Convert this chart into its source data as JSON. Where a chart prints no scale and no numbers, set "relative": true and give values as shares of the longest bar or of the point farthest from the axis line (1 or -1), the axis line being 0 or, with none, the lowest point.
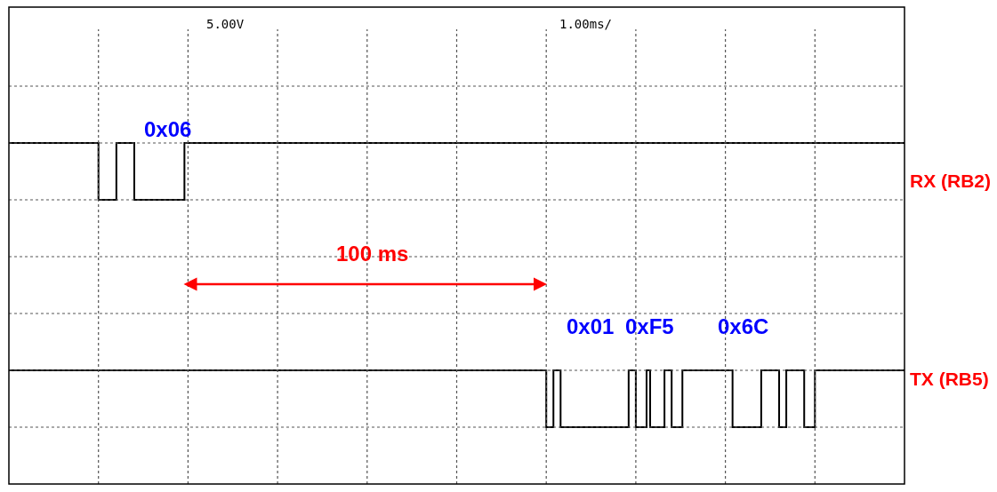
{
  "chart_data": {
    "type": "step",
    "relative": true,
    "grid": true,
    "legend": false,
    "marker": "none",
    "line_style": "solid",
    "annotations": [
      "5.00V",
      "1.00ms/",
      "0x06",
      "100 ms",
      "0x01",
      "0xF5",
      "0x6C"
    ],
    "categories": [
      null,
      null,
      null,
      null,
      null,
      null,
      null,
      null,
      null,
      null,
      null,
      null,
      null,
      null,
      null,
      null,
      null,
      null,
      null,
      null,
      null,
      null,
      null,
      null,
      null,
      null,
      null,
      null,
      null,
      null,
      null,
      null,
      null,
      null,
      null,
      null,
      null,
      null,
      null,
      null,
      null,
      null,
      null,
      null,
      null,
      null,
      null,
      null,
      null,
      null,
      null,
      null,
      null,
      null,
      null,
      null,
      null,
      null,
      null,
      null,
      null,
      null,
      null,
      null,
      null,
      null,
      null,
      null,
      null,
      null,
      null,
      null,
      null,
      null,
      null,
      null,
      null,
      null,
      null,
      null,
      null,
      null,
      null,
      null,
      null,
      null,
      null,
      null,
      null,
      null,
      null,
      null,
      null,
      null,
      null,
      null,
      null,
      null,
      null,
      null,
      null,
      null,
      null,
      null,
      null,
      null,
      null,
      null,
      null,
      null,
      null,
      null,
      null,
      null,
      null,
      null,
      null,
      null,
      null,
      null,
      null,
      null,
      null,
      null,
      null,
      null,
      null,
      null,
      null,
      null,
      null,
      null,
      null,
      null,
      null,
      null,
      null,
      null,
      null,
      null,
      null,
      null,
      null,
      null,
      null,
      null,
      null,
      null,
      null,
      null,
      null,
      null,
      null,
      null,
      null,
      null,
      null,
      null,
      null,
      null,
      null,
      null,
      null,
      null,
      null,
      null,
      null,
      null,
      null,
      null,
      null,
      null,
      null,
      null,
      null,
      null,
      null,
      null,
      null,
      null,
      null,
      null,
      null,
      null,
      null,
      null,
      null,
      null,
      null,
      null,
      null,
      null,
      null,
      null,
      null,
      null,
      null,
      null,
      null,
      null,
      null,
      null,
      null,
      null,
      null,
      null,
      null,
      null,
      null,
      null,
      null,
      null,
      null,
      null,
      null,
      null,
      null,
      null,
      null,
      null,
      null,
      null,
      null,
      null,
      null,
      null,
      null,
      null,
      null,
      null,
      null,
      null,
      null,
      null,
      null,
      null,
      null,
      null,
      null,
      null,
      null,
      null,
      null,
      null,
      null,
      null,
      null,
      null,
      null,
      null,
      null
    ],
    "series": [
      {
        "name": "RX (RB2)",
        "color": "#000000",
        "values": [
          1,
          1,
          1,
          1,
          1,
          1,
          1,
          1,
          1,
          1,
          1,
          1,
          1,
          1,
          1,
          1,
          1,
          1,
          1,
          1,
          1,
          1,
          1,
          1,
          1,
          0.8,
          0.8,
          0.8,
          0.8,
          0.8,
          1,
          1,
          1,
          1,
          1,
          0.8,
          0.8,
          0.8,
          0.8,
          0.8,
          0.8,
          0.8,
          0.8,
          0.8,
          0.8,
          0.8,
          0.8,
          0.8,
          0.8,
          1,
          1,
          1,
          1,
          1,
          1,
          1,
          1,
          1,
          1,
          1,
          1,
          1,
          1,
          1,
          1,
          1,
          1,
          1,
          1,
          1,
          1,
          1,
          1,
          1,
          1,
          1,
          1,
          1,
          1,
          1,
          1,
          1,
          1,
          1,
          1,
          1,
          1,
          1,
          1,
          1,
          1,
          1,
          1,
          1,
          1,
          1,
          1,
          1,
          1,
          1,
          1,
          1,
          1,
          1,
          1,
          1,
          1,
          1,
          1,
          1,
          1,
          1,
          1,
          1,
          1,
          1,
          1,
          1,
          1,
          1,
          1,
          1,
          1,
          1,
          1,
          1,
          1,
          1,
          1,
          1,
          1,
          1,
          1,
          1,
          1,
          1,
          1,
          1,
          1,
          1,
          1,
          1,
          1,
          1,
          1,
          1,
          1,
          1,
          1,
          1,
          1,
          1,
          1,
          1,
          1,
          1,
          1,
          1,
          1,
          1,
          1,
          1,
          1,
          1,
          1,
          1,
          1,
          1,
          1,
          1,
          1,
          1,
          1,
          1,
          1,
          1,
          1,
          1,
          1,
          1,
          1,
          1,
          1,
          1,
          1,
          1,
          1,
          1,
          1,
          1,
          1,
          1,
          1,
          1,
          1,
          1,
          1,
          1,
          1,
          1,
          1,
          1,
          1,
          1,
          1,
          1,
          1,
          1,
          1,
          1,
          1,
          1,
          1,
          1,
          1,
          1,
          1,
          1,
          1,
          1,
          1,
          1,
          1,
          1,
          1,
          1,
          1,
          1,
          1,
          1,
          1,
          1,
          1,
          1,
          1,
          1,
          1,
          1,
          1,
          1,
          1,
          1,
          1,
          1,
          1,
          1,
          1,
          1,
          1,
          1,
          1
        ]
      },
      {
        "name": "TX (RB5)",
        "color": "#000000",
        "values": [
          0.2,
          0.2,
          0.2,
          0.2,
          0.2,
          0.2,
          0.2,
          0.2,
          0.2,
          0.2,
          0.2,
          0.2,
          0.2,
          0.2,
          0.2,
          0.2,
          0.2,
          0.2,
          0.2,
          0.2,
          0.2,
          0.2,
          0.2,
          0.2,
          0.2,
          0.2,
          0.2,
          0.2,
          0.2,
          0.2,
          0.2,
          0.2,
          0.2,
          0.2,
          0.2,
          0.2,
          0.2,
          0.2,
          0.2,
          0.2,
          0.2,
          0.2,
          0.2,
          0.2,
          0.2,
          0.2,
          0.2,
          0.2,
          0.2,
          0.2,
          0.2,
          0.2,
          0.2,
          0.2,
          0.2,
          0.2,
          0.2,
          0.2,
          0.2,
          0.2,
          0.2,
          0.2,
          0.2,
          0.2,
          0.2,
          0.2,
          0.2,
          0.2,
          0.2,
          0.2,
          0.2,
          0.2,
          0.2,
          0.2,
          0.2,
          0.2,
          0.2,
          0.2,
          0.2,
          0.2,
          0.2,
          0.2,
          0.2,
          0.2,
          0.2,
          0.2,
          0.2,
          0.2,
          0.2,
          0.2,
          0.2,
          0.2,
          0.2,
          0.2,
          0.2,
          0.2,
          0.2,
          0.2,
          0.2,
          0.2,
          0.2,
          0.2,
          0.2,
          0.2,
          0.2,
          0.2,
          0.2,
          0.2,
          0.2,
          0.2,
          0.2,
          0.2,
          0.2,
          0.2,
          0.2,
          0.2,
          0.2,
          0.2,
          0.2,
          0.2,
          0.2,
          0.2,
          0.2,
          0.2,
          0.2,
          0.2,
          0.2,
          0.2,
          0.2,
          0.2,
          0.2,
          0.2,
          0.2,
          0.2,
          0.2,
          0.2,
          0.2,
          0.2,
          0.2,
          0.2,
          0.2,
          0.2,
          0.2,
          0.2,
          0.2,
          0.2,
          0.2,
          0.2,
          0.2,
          0.2,
          0,
          0,
          0.2,
          0.2,
          0,
          0,
          0,
          0,
          0,
          0,
          0,
          0,
          0,
          0,
          0,
          0,
          0,
          0,
          0,
          0,
          0,
          0,
          0,
          0.2,
          0.2,
          0,
          0,
          0,
          0.2,
          0,
          0,
          0,
          0,
          0.2,
          0.2,
          0,
          0,
          0,
          0.2,
          0.2,
          0.2,
          0.2,
          0.2,
          0.2,
          0.2,
          0.2,
          0.2,
          0.2,
          0.2,
          0.2,
          0.2,
          0.2,
          0,
          0,
          0,
          0,
          0,
          0,
          0,
          0,
          0.2,
          0.2,
          0.2,
          0.2,
          0.2,
          0,
          0,
          0.2,
          0.2,
          0.2,
          0.2,
          0.2,
          0,
          0,
          0,
          0.2,
          0.2,
          0.2,
          0.2,
          0.2,
          0.2,
          0.2,
          0.2,
          0.2,
          0.2,
          0.2,
          0.2,
          0.2,
          0.2,
          0.2,
          0.2,
          0.2,
          0.2,
          0.2,
          0.2,
          0.2,
          0.2,
          0.2,
          0.2,
          0.2,
          0.2
        ]
      }
    ]
  }
}
